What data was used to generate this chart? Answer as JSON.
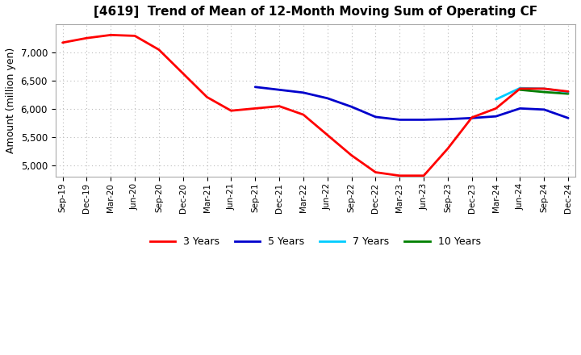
{
  "title": "[4619]  Trend of Mean of 12-Month Moving Sum of Operating CF",
  "ylabel": "Amount (million yen)",
  "ylim": [
    4800,
    7500
  ],
  "yticks": [
    5000,
    5500,
    6000,
    6500,
    7000
  ],
  "background_color": "#ffffff",
  "plot_bg_color": "#ffffff",
  "grid_color": "#bbbbbb",
  "x_labels": [
    "Sep-19",
    "Dec-19",
    "Mar-20",
    "Jun-20",
    "Sep-20",
    "Dec-20",
    "Mar-21",
    "Jun-21",
    "Sep-21",
    "Dec-21",
    "Mar-22",
    "Jun-22",
    "Sep-22",
    "Dec-22",
    "Mar-23",
    "Jun-23",
    "Sep-23",
    "Dec-23",
    "Mar-24",
    "Jun-24",
    "Sep-24",
    "Dec-24"
  ],
  "series_3y": {
    "color": "#ff0000",
    "label": "3 Years",
    "values": [
      7175,
      7255,
      7310,
      7295,
      7050,
      6630,
      6210,
      5970,
      6010,
      6050,
      5900,
      5540,
      5180,
      4880,
      4820,
      4820,
      5300,
      5850,
      6010,
      6360,
      6360,
      6310
    ]
  },
  "series_5y": {
    "color": "#0000cc",
    "label": "5 Years",
    "values": [
      null,
      null,
      null,
      null,
      null,
      null,
      null,
      null,
      6390,
      6340,
      6290,
      6190,
      6040,
      5860,
      5810,
      5810,
      5820,
      5840,
      5870,
      6010,
      5990,
      5840
    ]
  },
  "series_7y": {
    "color": "#00ccff",
    "label": "7 Years",
    "values": [
      null,
      null,
      null,
      null,
      null,
      null,
      null,
      null,
      null,
      null,
      null,
      null,
      null,
      null,
      null,
      null,
      null,
      null,
      6170,
      6370,
      6360,
      6300
    ]
  },
  "series_10y": {
    "color": "#008000",
    "label": "10 Years",
    "values": [
      null,
      null,
      null,
      null,
      null,
      null,
      null,
      null,
      null,
      null,
      null,
      null,
      null,
      null,
      null,
      null,
      null,
      null,
      null,
      6340,
      6300,
      6270
    ]
  },
  "legend_colors": [
    "#ff0000",
    "#0000cc",
    "#00ccff",
    "#008000"
  ],
  "legend_labels": [
    "3 Years",
    "5 Years",
    "7 Years",
    "10 Years"
  ]
}
